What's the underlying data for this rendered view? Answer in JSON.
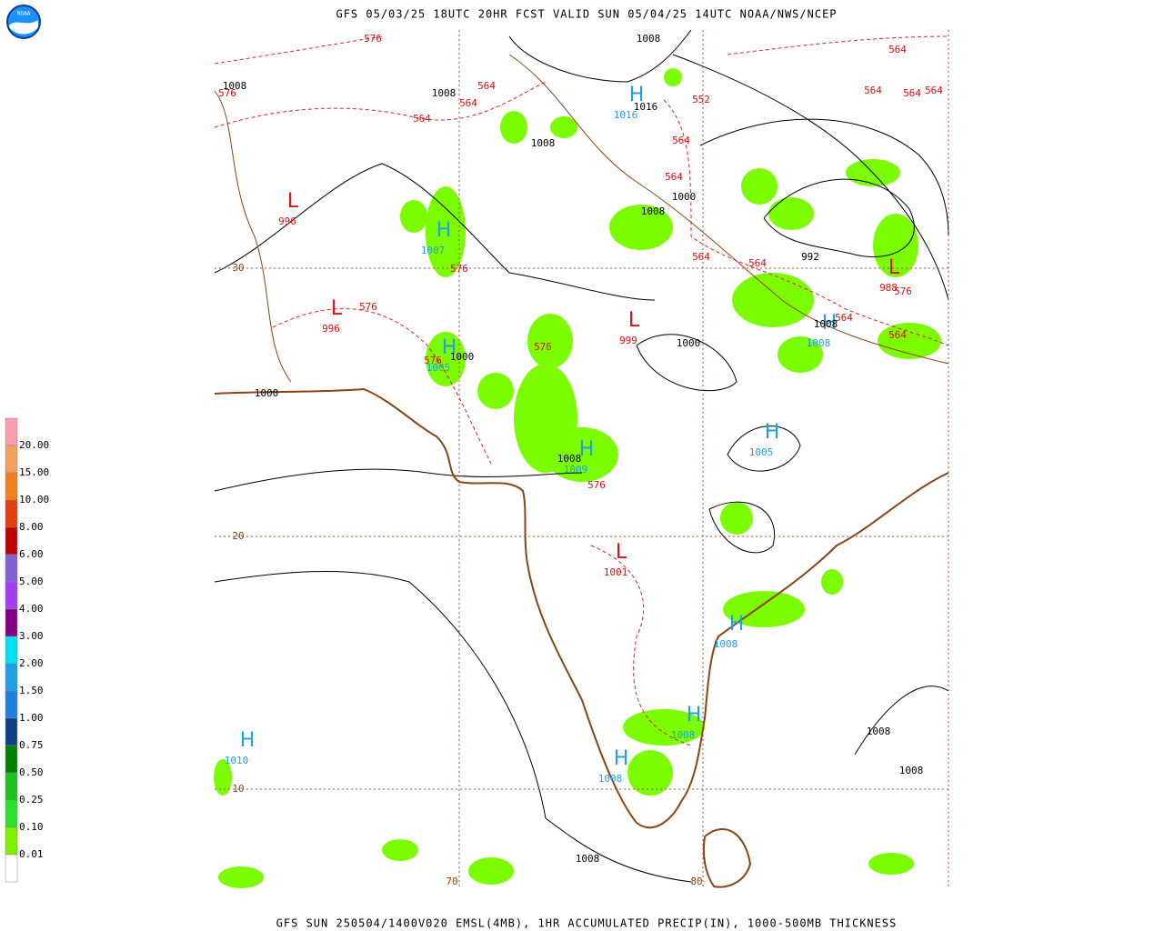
{
  "header": {
    "title": "GFS 05/03/25 18UTC 20HR FCST VALID SUN 05/04/25 14UTC NOAA/NWS/NCEP"
  },
  "footer": {
    "caption": "GFS SUN 250504/1400V020 EMSL(4MB), 1HR ACCUMULATED PRECIP(IN), 1000-500MB THICKNESS"
  },
  "logo": {
    "text": "NOAA"
  },
  "legend": {
    "labels": [
      "20.00",
      "15.00",
      "10.00",
      "8.00",
      "6.00",
      "5.00",
      "4.00",
      "3.00",
      "2.00",
      "1.50",
      "1.00",
      "0.75",
      "0.50",
      "0.25",
      "0.10",
      "0.01"
    ]
  },
  "map": {
    "grid_labels": [
      "30",
      "20",
      "10",
      "70",
      "80"
    ],
    "highs": [
      {
        "symbol": "H",
        "value": "1016"
      },
      {
        "symbol": "H",
        "value": "1007"
      },
      {
        "symbol": "H",
        "value": "1005"
      },
      {
        "symbol": "H",
        "value": "1009"
      },
      {
        "symbol": "H",
        "value": "1005"
      },
      {
        "symbol": "H",
        "value": "1008"
      },
      {
        "symbol": "H",
        "value": "1008"
      },
      {
        "symbol": "H",
        "value": "1008"
      },
      {
        "symbol": "H",
        "value": "1010"
      },
      {
        "symbol": "H",
        "value": "1008"
      }
    ],
    "lows": [
      {
        "symbol": "L",
        "value": "996"
      },
      {
        "symbol": "L",
        "value": "996"
      },
      {
        "symbol": "L",
        "value": "999"
      },
      {
        "symbol": "L",
        "value": "988"
      },
      {
        "symbol": "L",
        "value": "1001"
      }
    ],
    "isobar_labels": [
      "1008",
      "1008",
      "1008",
      "1016",
      "1008",
      "1000",
      "1008",
      "992",
      "1008",
      "1000",
      "1000",
      "1000",
      "1008",
      "1008",
      "1008",
      "1008"
    ],
    "thickness_labels": [
      "576",
      "576",
      "564",
      "564",
      "564",
      "552",
      "564",
      "564",
      "564",
      "564",
      "564",
      "564",
      "564",
      "564",
      "576",
      "576",
      "576",
      "576",
      "576",
      "576",
      "564",
      "564"
    ]
  }
}
